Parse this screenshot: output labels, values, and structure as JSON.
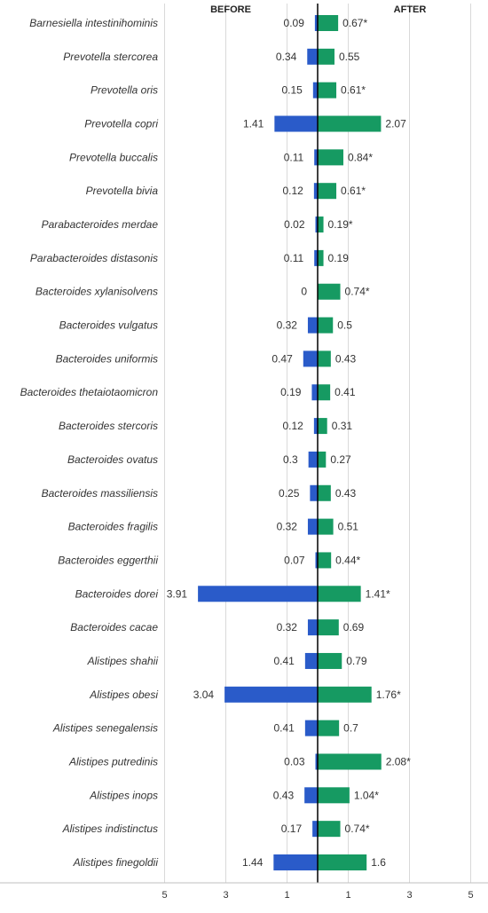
{
  "chart_data": {
    "type": "bar",
    "headers": {
      "left": "BEFORE",
      "right": "AFTER"
    },
    "categories": [
      "Barnesiella intestinihominis",
      "Prevotella stercorea",
      "Prevotella oris",
      "Prevotella copri",
      "Prevotella buccalis",
      "Prevotella bivia",
      "Parabacteroides merdae",
      "Parabacteroides distasonis",
      "Bacteroides xylanisolvens",
      "Bacteroides vulgatus",
      "Bacteroides uniformis",
      "Bacteroides thetaiotaomicron",
      "Bacteroides stercoris",
      "Bacteroides ovatus",
      "Bacteroides massiliensis",
      "Bacteroides fragilis",
      "Bacteroides eggerthii",
      "Bacteroides dorei",
      "Bacteroides cacae",
      "Alistipes shahii",
      "Alistipes obesi",
      "Alistipes senegalensis",
      "Alistipes putredinis",
      "Alistipes inops",
      "Alistipes indistinctus",
      "Alistipes finegoldii"
    ],
    "series": [
      {
        "name": "BEFORE",
        "color": "#2a5bc9",
        "values": [
          0.09,
          0.34,
          0.15,
          1.41,
          0.11,
          0.12,
          0.02,
          0.11,
          0,
          0.32,
          0.47,
          0.19,
          0.12,
          0.3,
          0.25,
          0.32,
          0.07,
          3.91,
          0.32,
          0.41,
          3.04,
          0.41,
          0.03,
          0.43,
          0.17,
          1.44
        ],
        "labels": [
          "0.09",
          "0.34",
          "0.15",
          "1.41",
          "0.11",
          "0.12",
          "0.02",
          "0.11",
          "0",
          "0.32",
          "0.47",
          "0.19",
          "0.12",
          "0.3",
          "0.25",
          "0.32",
          "0.07",
          "3.91",
          "0.32",
          "0.41",
          "3.04",
          "0.41",
          "0.03",
          "0.43",
          "0.17",
          "1.44"
        ]
      },
      {
        "name": "AFTER",
        "color": "#169a62",
        "values": [
          0.67,
          0.55,
          0.61,
          2.07,
          0.84,
          0.61,
          0.19,
          0.19,
          0.74,
          0.5,
          0.43,
          0.41,
          0.31,
          0.27,
          0.43,
          0.51,
          0.44,
          1.41,
          0.69,
          0.79,
          1.76,
          0.7,
          2.08,
          1.04,
          0.74,
          1.6
        ],
        "labels": [
          "0.67*",
          "0.55",
          "0.61*",
          "2.07",
          "0.84*",
          "0.61*",
          "0.19*",
          "0.19",
          "0.74*",
          "0.5",
          "0.43",
          "0.41",
          "0.31",
          "0.27",
          "0.43",
          "0.51",
          "0.44*",
          "1.41*",
          "0.69",
          "0.79",
          "1.76*",
          "0.7",
          "2.08*",
          "1.04*",
          "0.74*",
          "1.6"
        ]
      }
    ],
    "x_axis": {
      "ticks_left": [
        "5",
        "3",
        "1"
      ],
      "ticks_right": [
        "1",
        "3",
        "5"
      ],
      "range": [
        -5,
        5
      ]
    },
    "grid": "vertical",
    "legend": "none"
  }
}
